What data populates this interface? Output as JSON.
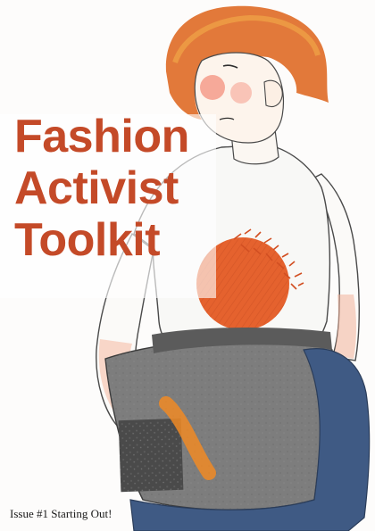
{
  "cover": {
    "title_lines": [
      "Fashion",
      "Activist",
      "Toolkit"
    ],
    "issue_label": "Issue #1 Starting Out!"
  },
  "palette": {
    "title_color": "#c44a28",
    "hair": "#e2793a",
    "shirt_circle": "#e5622e",
    "skirt": "#7d7d7d",
    "jeans": "#3f5a84"
  }
}
